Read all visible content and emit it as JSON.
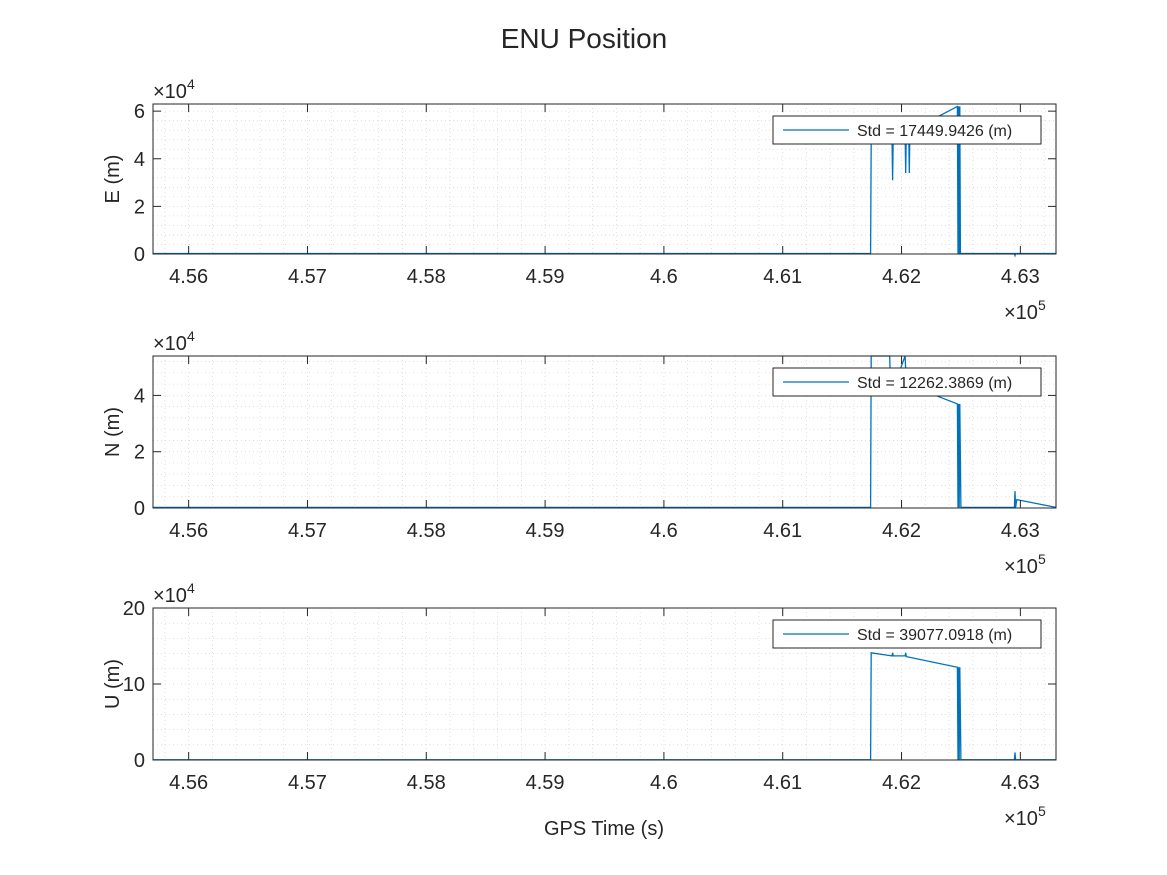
{
  "figure": {
    "title": "ENU Position",
    "xlabel": "GPS Time (s)"
  },
  "chart_data": [
    {
      "type": "line",
      "ylabel": "E (m)",
      "xlim": [
        455700,
        463300
      ],
      "ylim": [
        0,
        63000
      ],
      "xticks": [
        456000,
        457000,
        458000,
        459000,
        460000,
        461000,
        462000,
        463000
      ],
      "xtick_labels": [
        "4.56",
        "4.57",
        "4.58",
        "4.59",
        "4.6",
        "4.61",
        "4.62",
        "4.63"
      ],
      "x_exponent": "5",
      "yticks": [
        0,
        20000,
        40000,
        60000
      ],
      "ytick_labels": [
        "0",
        "2",
        "4",
        "6"
      ],
      "y_exponent": "4",
      "grid": true,
      "legend": "top-right",
      "series": [
        {
          "name": "Std = 17449.9426 (m)",
          "color": "#0072BD",
          "x": [
            455700,
            461740,
            461745,
            461920,
            461925,
            461930,
            462030,
            462035,
            462040,
            462060,
            462065,
            462070,
            462470,
            462475,
            462480,
            462485,
            462490,
            462495,
            462500,
            462950,
            462955,
            462960,
            463300
          ],
          "y": [
            200,
            200,
            48000,
            49000,
            31000,
            49000,
            51000,
            34000,
            51000,
            51500,
            34000,
            51500,
            62000,
            200,
            62000,
            200,
            62000,
            200,
            200,
            200,
            -800,
            200,
            200
          ]
        }
      ]
    },
    {
      "type": "line",
      "ylabel": "N (m)",
      "xlim": [
        455700,
        463300
      ],
      "ylim": [
        0,
        54000
      ],
      "xticks": [
        456000,
        457000,
        458000,
        459000,
        460000,
        461000,
        462000,
        463000
      ],
      "xtick_labels": [
        "4.56",
        "4.57",
        "4.58",
        "4.59",
        "4.6",
        "4.61",
        "4.62",
        "4.63"
      ],
      "x_exponent": "5",
      "yticks": [
        0,
        20000,
        40000
      ],
      "ytick_labels": [
        "0",
        "2",
        "4"
      ],
      "y_exponent": "4",
      "grid": true,
      "legend": "top-right",
      "series": [
        {
          "name": "Std = 12262.3869 (m)",
          "color": "#0072BD",
          "x": [
            455700,
            461740,
            461745,
            461900,
            461910,
            462030,
            462040,
            462470,
            462475,
            462480,
            462485,
            462490,
            462500,
            462950,
            462955,
            462960,
            462970,
            463300
          ],
          "y": [
            200,
            200,
            54000,
            54000,
            40000,
            54000,
            44000,
            37000,
            200,
            37000,
            200,
            37000,
            200,
            200,
            6000,
            200,
            3000,
            200
          ]
        }
      ]
    },
    {
      "type": "line",
      "ylabel": "U (m)",
      "xlim": [
        455700,
        463300
      ],
      "ylim": [
        0,
        200000
      ],
      "xticks": [
        456000,
        457000,
        458000,
        459000,
        460000,
        461000,
        462000,
        463000
      ],
      "xtick_labels": [
        "4.56",
        "4.57",
        "4.58",
        "4.59",
        "4.6",
        "4.61",
        "4.62",
        "4.63"
      ],
      "x_exponent": "5",
      "yticks": [
        0,
        100000,
        200000
      ],
      "ytick_labels": [
        "0",
        "10",
        "20"
      ],
      "y_exponent": "4",
      "grid": true,
      "legend": "top-right",
      "series": [
        {
          "name": "Std = 39077.0918 (m)",
          "color": "#0072BD",
          "x": [
            455700,
            461740,
            461745,
            461920,
            461925,
            461930,
            462030,
            462035,
            462040,
            462470,
            462475,
            462480,
            462485,
            462490,
            462500,
            462950,
            462955,
            462960,
            463300
          ],
          "y": [
            300,
            300,
            141000,
            137000,
            141000,
            137000,
            137000,
            141000,
            136000,
            122000,
            300,
            122000,
            300,
            122000,
            300,
            300,
            10000,
            300,
            300
          ]
        }
      ]
    }
  ]
}
